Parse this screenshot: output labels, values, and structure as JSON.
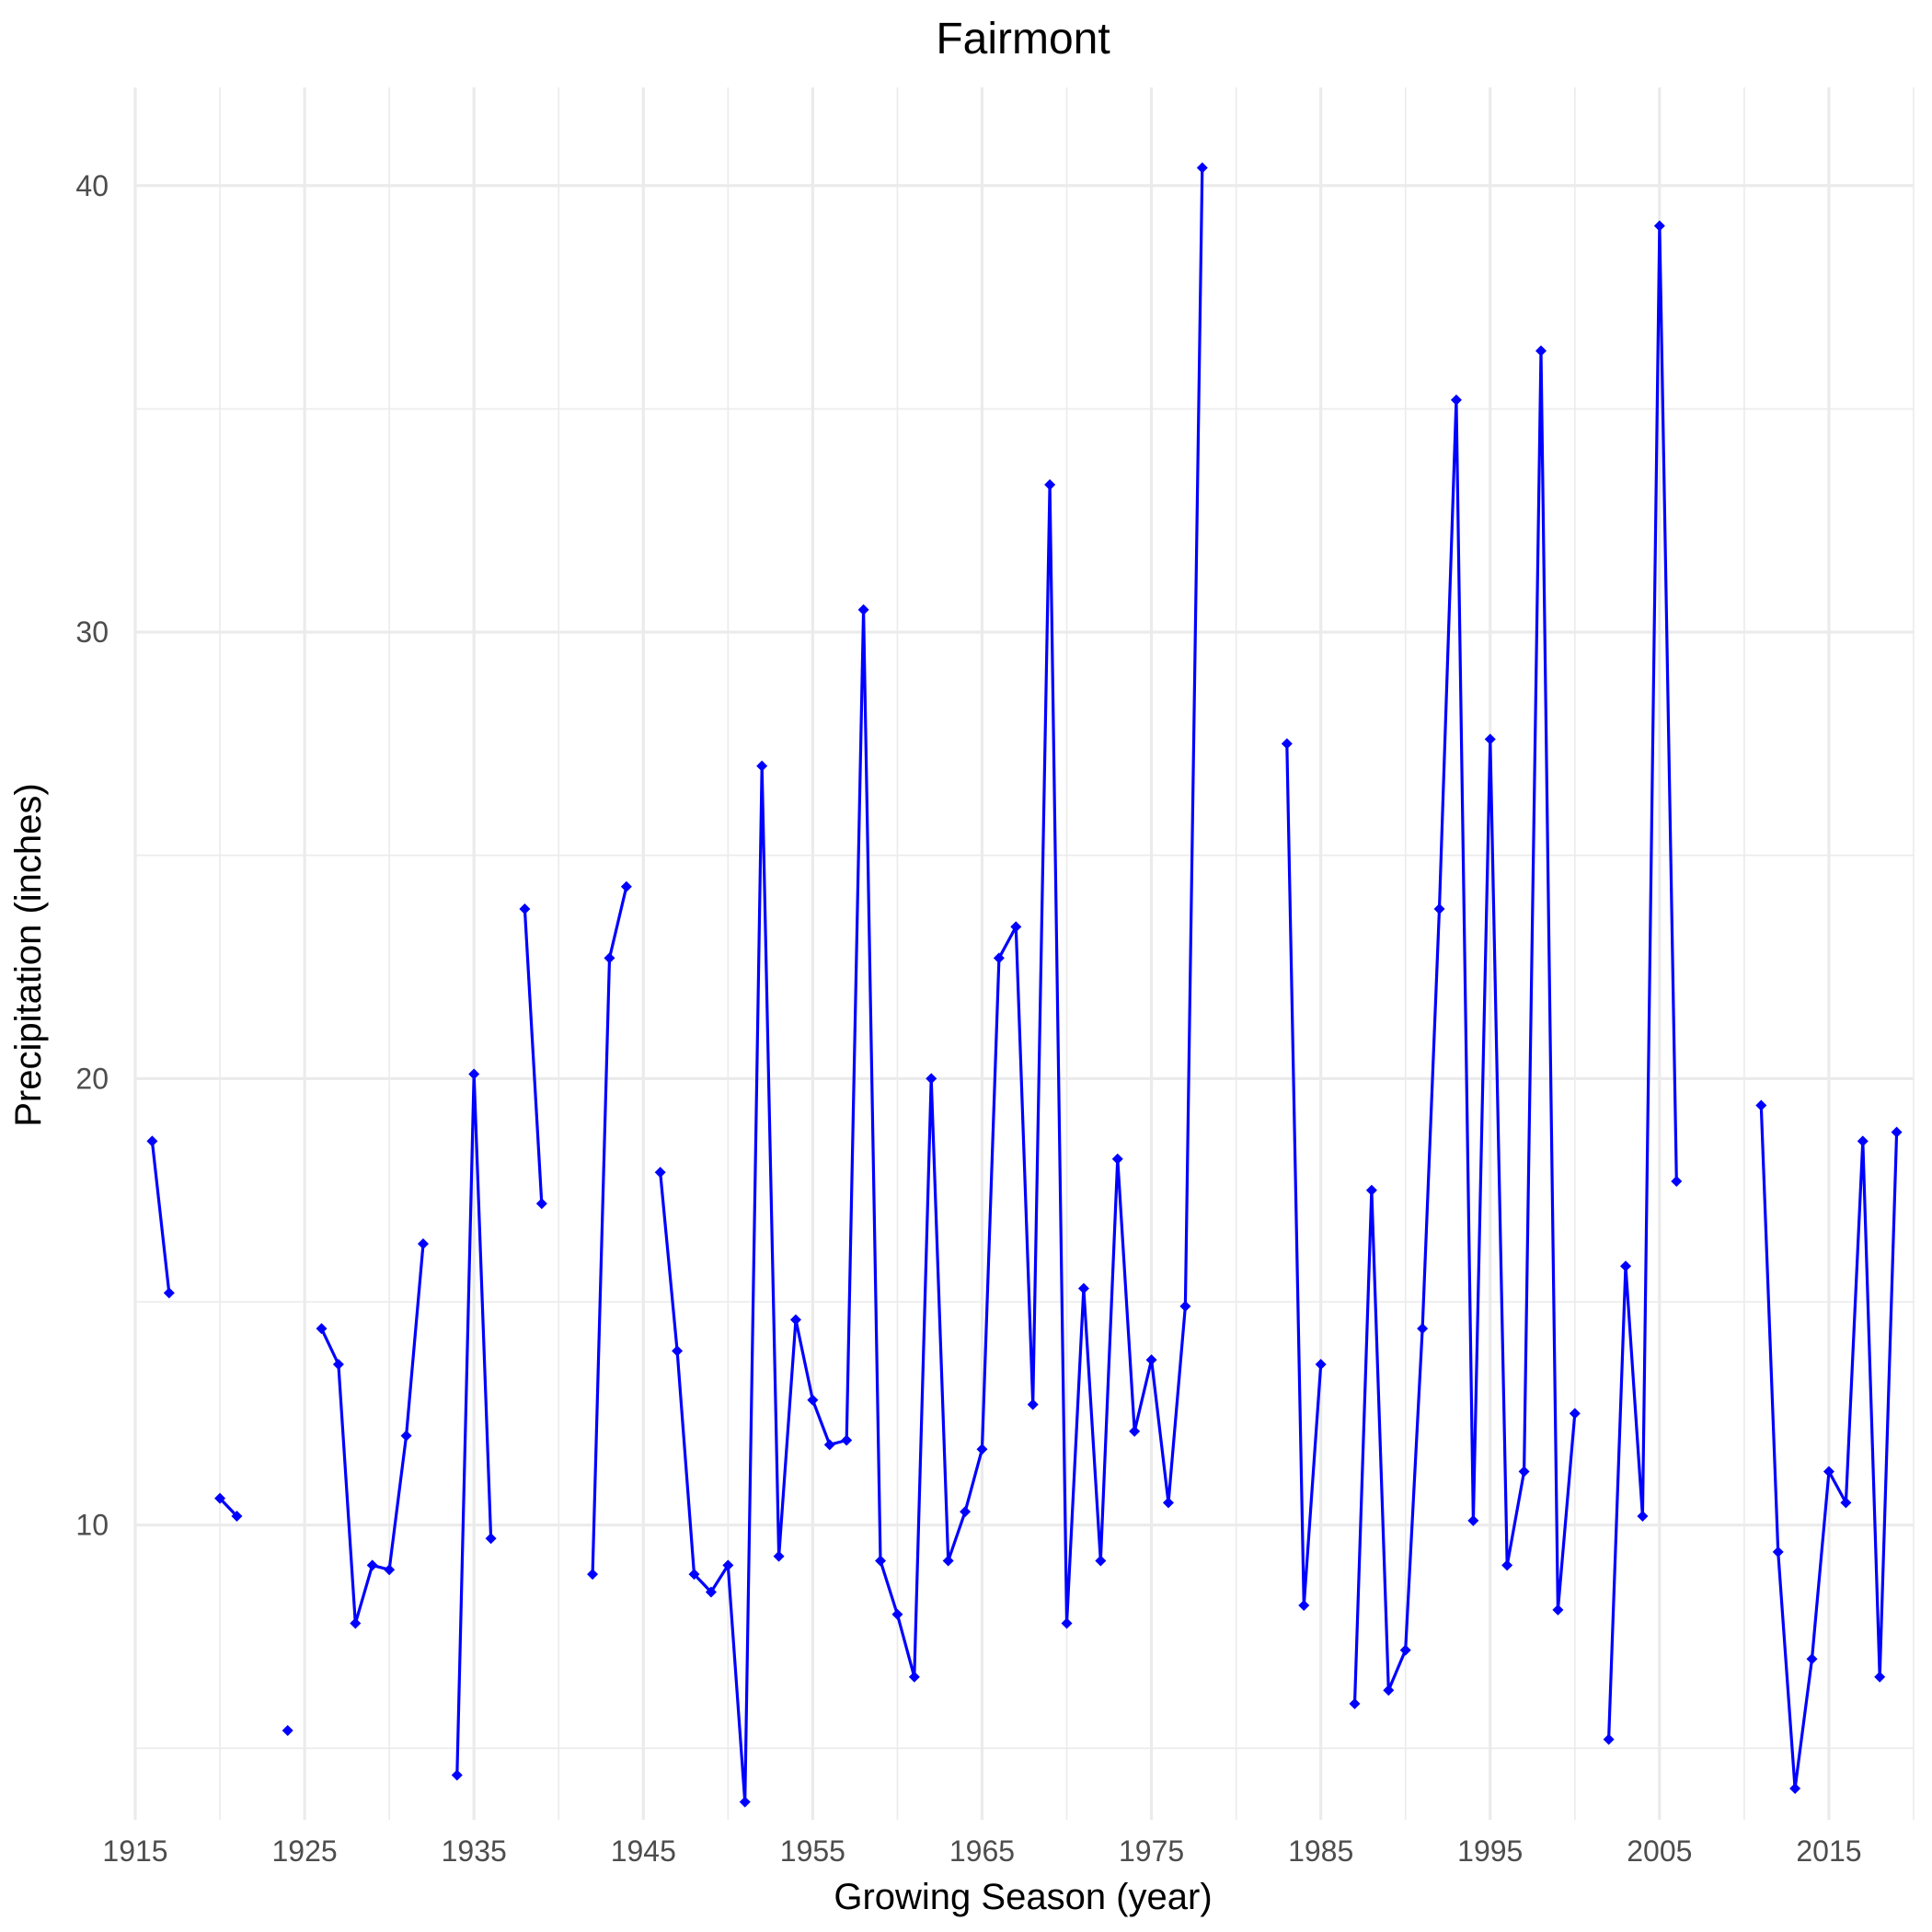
{
  "chart_data": {
    "type": "line",
    "title": "Fairmont",
    "xlabel": "Growing Season (year)",
    "ylabel": "Precipitation (inches)",
    "xlim": [
      1915,
      2020
    ],
    "ylim": [
      3.4,
      42.2
    ],
    "x_ticks": [
      1915,
      1925,
      1935,
      1945,
      1955,
      1965,
      1975,
      1985,
      1995,
      2005,
      2015
    ],
    "x_tick_labels": [
      "1915",
      "1925",
      "1935",
      "1945",
      "1955",
      "1965",
      "1975",
      "1985",
      "1995",
      "2005",
      "2015"
    ],
    "y_ticks": [
      10,
      20,
      30,
      40
    ],
    "y_tick_labels": [
      "10",
      "20",
      "30",
      "40"
    ],
    "grid": true,
    "legend": "none",
    "colors": {
      "series": "#0000ff",
      "grid": "#ebebeb",
      "tick_text": "#4d4d4d"
    },
    "series": [
      {
        "segments": [
          [
            [
              1916,
              18.6
            ],
            [
              1917,
              15.2
            ]
          ],
          [
            [
              1920,
              10.6
            ],
            [
              1921,
              10.2
            ]
          ],
          [
            [
              1924,
              5.4
            ]
          ],
          [
            [
              1926,
              14.4
            ],
            [
              1927,
              13.6
            ],
            [
              1928,
              7.8
            ],
            [
              1929,
              9.1
            ],
            [
              1930,
              9.0
            ],
            [
              1931,
              12.0
            ],
            [
              1932,
              16.3
            ]
          ],
          [
            [
              1934,
              4.4
            ],
            [
              1935,
              20.1
            ],
            [
              1936,
              9.7
            ]
          ],
          [
            [
              1938,
              23.8
            ],
            [
              1939,
              17.2
            ]
          ],
          [
            [
              1942,
              8.9
            ],
            [
              1943,
              22.7
            ],
            [
              1944,
              24.3
            ]
          ],
          [
            [
              1946,
              17.9
            ],
            [
              1947,
              13.9
            ],
            [
              1948,
              8.9
            ],
            [
              1949,
              8.5
            ],
            [
              1950,
              9.1
            ],
            [
              1951,
              3.8
            ],
            [
              1952,
              27.0
            ],
            [
              1953,
              9.3
            ],
            [
              1954,
              14.6
            ],
            [
              1955,
              12.8
            ],
            [
              1956,
              11.8
            ],
            [
              1957,
              11.9
            ],
            [
              1958,
              30.5
            ],
            [
              1959,
              9.2
            ],
            [
              1960,
              8.0
            ],
            [
              1961,
              6.6
            ],
            [
              1962,
              20.0
            ],
            [
              1963,
              9.2
            ],
            [
              1964,
              10.3
            ],
            [
              1965,
              11.7
            ],
            [
              1966,
              22.7
            ],
            [
              1967,
              23.4
            ],
            [
              1968,
              12.7
            ],
            [
              1969,
              33.3
            ],
            [
              1970,
              7.8
            ],
            [
              1971,
              15.3
            ],
            [
              1972,
              9.2
            ],
            [
              1973,
              18.2
            ],
            [
              1974,
              12.1
            ],
            [
              1975,
              13.7
            ],
            [
              1976,
              10.5
            ],
            [
              1977,
              14.9
            ],
            [
              1978,
              40.4
            ]
          ],
          [
            [
              1983,
              27.5
            ],
            [
              1984,
              8.2
            ],
            [
              1985,
              13.6
            ]
          ],
          [
            [
              1987,
              6.0
            ],
            [
              1988,
              17.5
            ],
            [
              1989,
              6.3
            ],
            [
              1990,
              7.2
            ],
            [
              1991,
              14.4
            ],
            [
              1992,
              23.8
            ],
            [
              1993,
              35.2
            ],
            [
              1994,
              10.1
            ],
            [
              1995,
              27.6
            ],
            [
              1996,
              9.1
            ],
            [
              1997,
              11.2
            ],
            [
              1998,
              36.3
            ],
            [
              1999,
              8.1
            ],
            [
              2000,
              12.5
            ]
          ],
          [
            [
              2002,
              5.2
            ],
            [
              2003,
              15.8
            ],
            [
              2004,
              10.2
            ],
            [
              2005,
              39.1
            ],
            [
              2006,
              17.7
            ]
          ],
          [
            [
              2011,
              19.4
            ],
            [
              2012,
              9.4
            ],
            [
              2013,
              4.1
            ],
            [
              2014,
              7.0
            ],
            [
              2015,
              11.2
            ],
            [
              2016,
              10.5
            ],
            [
              2017,
              18.6
            ],
            [
              2018,
              6.6
            ],
            [
              2019,
              18.8
            ]
          ]
        ]
      }
    ]
  }
}
